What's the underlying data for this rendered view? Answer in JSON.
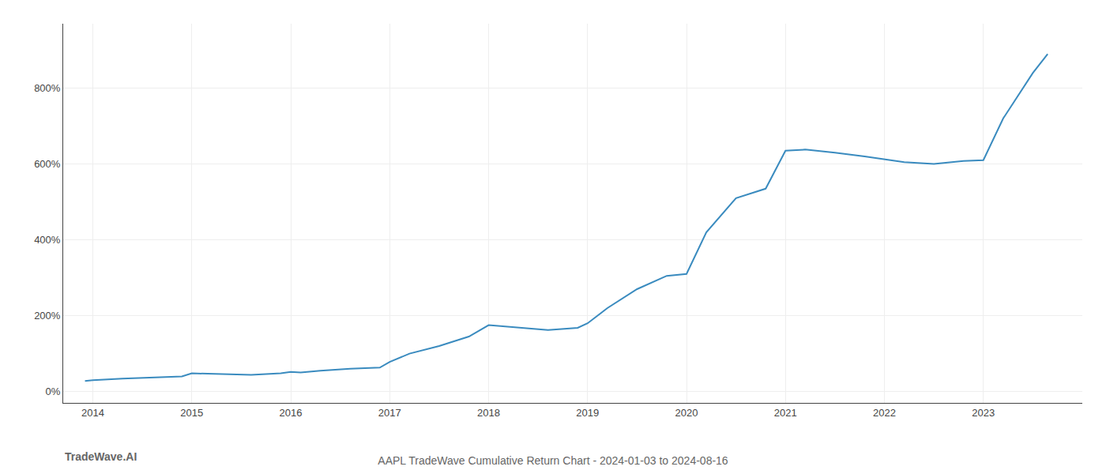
{
  "chart_data": {
    "type": "line",
    "title": "AAPL TradeWave Cumulative Return Chart - 2024-01-03 to 2024-08-16",
    "annotations": [
      "TradeWave.AI"
    ],
    "x": [
      2013.92,
      2014.0,
      2014.3,
      2014.6,
      2014.9,
      2015.0,
      2015.3,
      2015.6,
      2015.9,
      2016.0,
      2016.1,
      2016.3,
      2016.6,
      2016.9,
      2017.0,
      2017.2,
      2017.5,
      2017.8,
      2018.0,
      2018.3,
      2018.6,
      2018.9,
      2019.0,
      2019.2,
      2019.5,
      2019.8,
      2020.0,
      2020.2,
      2020.5,
      2020.8,
      2021.0,
      2021.2,
      2021.5,
      2021.8,
      2022.0,
      2022.2,
      2022.5,
      2022.8,
      2023.0,
      2023.2,
      2023.5,
      2023.65
    ],
    "values": [
      28,
      30,
      34,
      37,
      40,
      48,
      46,
      44,
      48,
      52,
      50,
      55,
      60,
      63,
      78,
      100,
      120,
      145,
      175,
      168,
      162,
      168,
      180,
      220,
      270,
      305,
      310,
      420,
      510,
      535,
      635,
      638,
      630,
      620,
      612,
      605,
      600,
      608,
      610,
      720,
      840,
      890
    ],
    "color": "#3a8bbf",
    "xlim": [
      2013.7,
      2024.0
    ],
    "xticks": [
      2014,
      2015,
      2016,
      2017,
      2018,
      2019,
      2020,
      2021,
      2022,
      2023
    ],
    "ylim": [
      -30,
      970
    ],
    "yticks": [
      {
        "value": 0,
        "label": "0%"
      },
      {
        "value": 200,
        "label": "200%"
      },
      {
        "value": 400,
        "label": "400%"
      },
      {
        "value": 600,
        "label": "600%"
      },
      {
        "value": 800,
        "label": "800%"
      }
    ],
    "grid": true
  }
}
